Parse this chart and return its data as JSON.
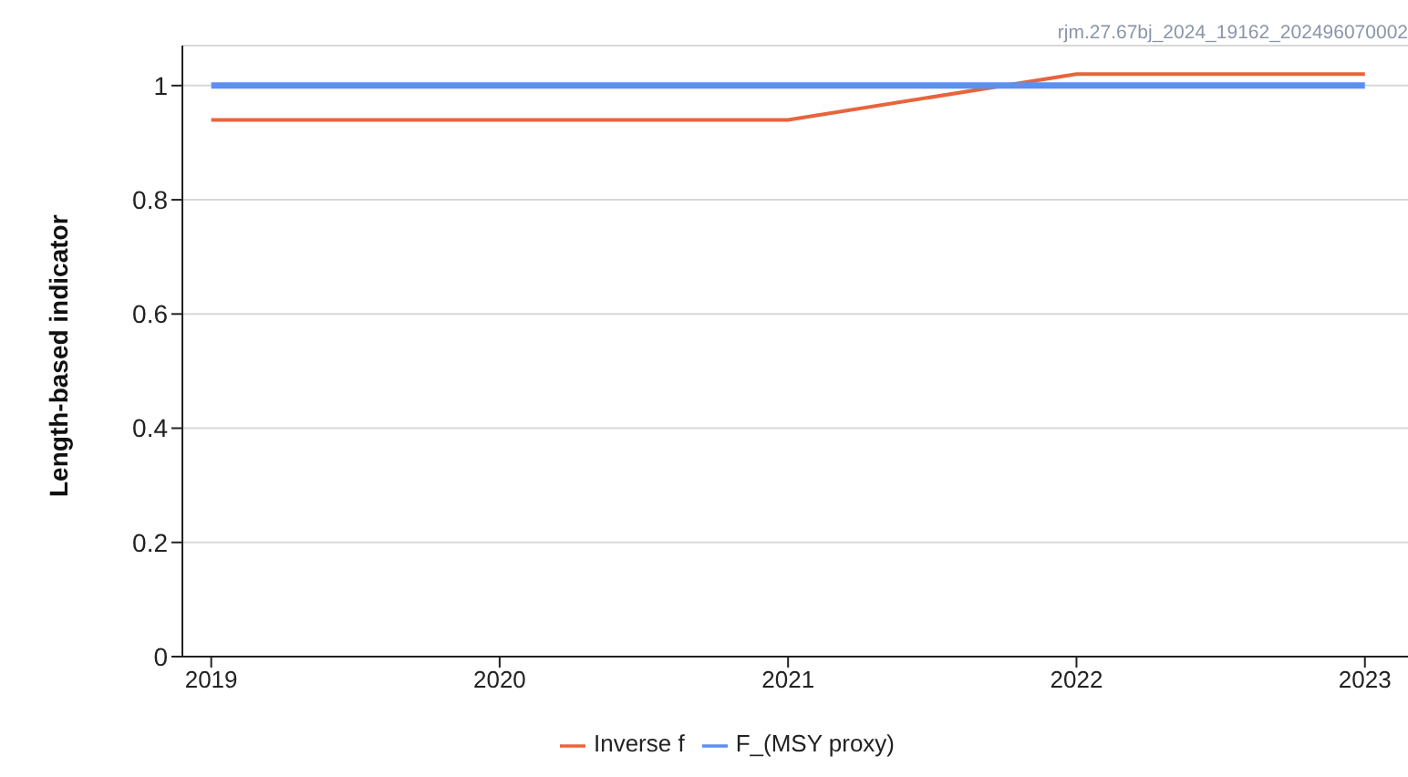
{
  "chart_data": {
    "type": "line",
    "ylabel": "Length-based indicator",
    "annotations": [
      "rjm.27.67bj_2024_19162_202496070002"
    ],
    "x": [
      2019,
      2020,
      2021,
      2022,
      2023
    ],
    "series": [
      {
        "name": "Inverse f",
        "color": "#e8643c",
        "values": [
          0.94,
          0.94,
          0.94,
          1.02,
          1.02
        ]
      },
      {
        "name": "F_(MSY proxy)",
        "color": "#5b8ff0",
        "values": [
          1,
          1,
          1,
          1,
          1
        ]
      }
    ],
    "xlim": [
      2018.9,
      2023.2
    ],
    "xticks": [
      2019,
      2020,
      2021,
      2022,
      2023
    ],
    "ylim": [
      0,
      1.07
    ],
    "yticks": [
      0,
      0.2,
      0.4,
      0.6,
      0.8,
      1
    ],
    "grid": "y",
    "legend": "bottom",
    "marker": "none",
    "line_style": "solid"
  }
}
